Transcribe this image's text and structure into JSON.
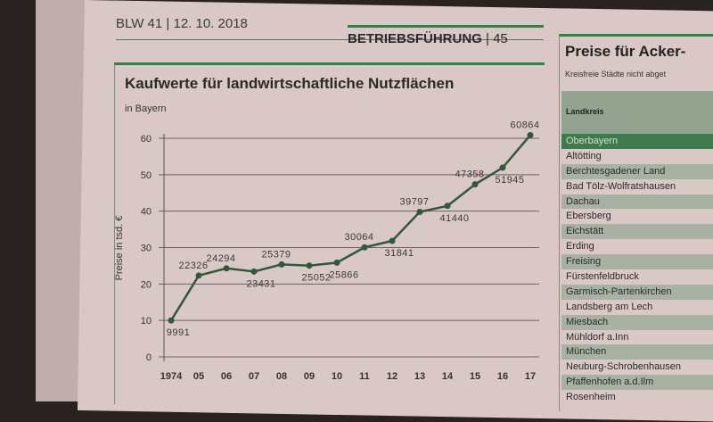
{
  "header": {
    "issue": "BLW 41 | 12. 10. 2018",
    "section": "BETRIEBSFÜHRUNG",
    "page": "| 45"
  },
  "colors": {
    "accent": "#3f7a4c",
    "line": "#2f5a3a",
    "paper": "#d9c8c6"
  },
  "chart_data": {
    "type": "line",
    "title": "Kaufwerte für landwirtschaftliche Nutzflächen",
    "subtitle": "in Bayern",
    "ylabel": "Preise in tsd. €",
    "ylim": [
      0,
      60
    ],
    "yticks": [
      "0",
      "10",
      "20",
      "30",
      "40",
      "50",
      "60"
    ],
    "grid": true,
    "categories": [
      "1974",
      "05",
      "06",
      "07",
      "08",
      "09",
      "10",
      "11",
      "12",
      "13",
      "14",
      "15",
      "16",
      "17"
    ],
    "values": [
      9991,
      22326,
      24294,
      23431,
      25379,
      25052,
      25866,
      30064,
      31841,
      39797,
      41440,
      47358,
      51945,
      60864
    ],
    "labels": [
      "9991",
      "22326",
      "24294",
      "23431",
      "25379",
      "25052",
      "25866",
      "30064",
      "31841",
      "39797",
      "41440",
      "47358",
      "51945",
      "60864"
    ],
    "label_side": [
      "below",
      "above",
      "above",
      "below",
      "above",
      "below",
      "below",
      "above",
      "below",
      "above",
      "below",
      "above",
      "below",
      "above"
    ]
  },
  "side": {
    "title": "Preise für Acker-",
    "subtitle": "Kreisfreie Städte nicht abget",
    "column": "Landkreis",
    "rows": [
      "Oberbayern",
      "Altötting",
      "Berchtesgadener Land",
      "Bad Tölz-Wolfratshausen",
      "Dachau",
      "Ebersberg",
      "Eichstätt",
      "Erding",
      "Freising",
      "Fürstenfeldbruck",
      "Garmisch-Partenkirchen",
      "Landsberg am Lech",
      "Miesbach",
      "Mühldorf a.Inn",
      "München",
      "Neuburg-Schrobenhausen",
      "Pfaffenhofen a.d.Ilm",
      "Rosenheim"
    ]
  }
}
